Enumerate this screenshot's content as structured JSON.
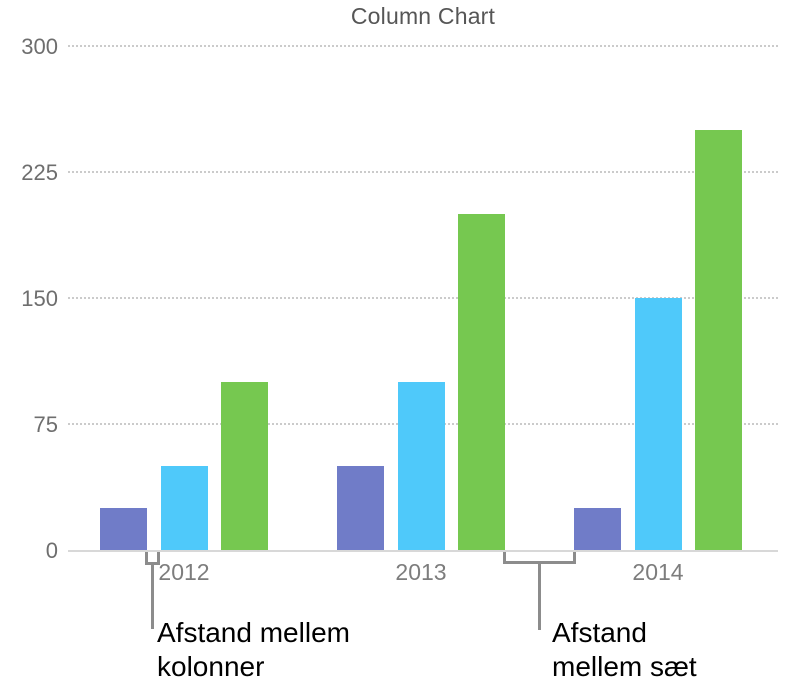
{
  "chart_data": {
    "type": "bar",
    "title": "Column Chart",
    "categories": [
      "2012",
      "2013",
      "2014"
    ],
    "series": [
      {
        "name": "series-1-purple",
        "color": "#707CC8",
        "values": [
          25,
          50,
          25
        ]
      },
      {
        "name": "series-2-cyan",
        "color": "#4FC9FA",
        "values": [
          50,
          100,
          150
        ]
      },
      {
        "name": "series-3-green",
        "color": "#76C850",
        "values": [
          100,
          200,
          250
        ]
      }
    ],
    "ylim": [
      0,
      300
    ],
    "yticks": [
      0,
      75,
      150,
      225,
      300
    ],
    "xlabel": "",
    "ylabel": "",
    "grid": "horizontal-dotted",
    "legend": "none"
  },
  "annotations": {
    "column_gap": {
      "text": "Afstand mellem kolonner",
      "lines": [
        "Afstand mellem",
        "kolonner"
      ]
    },
    "set_gap": {
      "text": "Afstand mellem sæt",
      "lines": [
        "Afstand",
        "mellem sæt"
      ]
    }
  },
  "colors": {
    "bar_purple": "#707CC8",
    "bar_cyan": "#4FC9FA",
    "bar_green": "#76C850",
    "gridline": "#CBCBCB",
    "axis_line": "#D8D8D8",
    "tick_label": "#6E6E6E",
    "category_label": "#7D7D7D",
    "title": "#565656",
    "bracket": "#8C8C8C",
    "callout_text": "#000000"
  }
}
